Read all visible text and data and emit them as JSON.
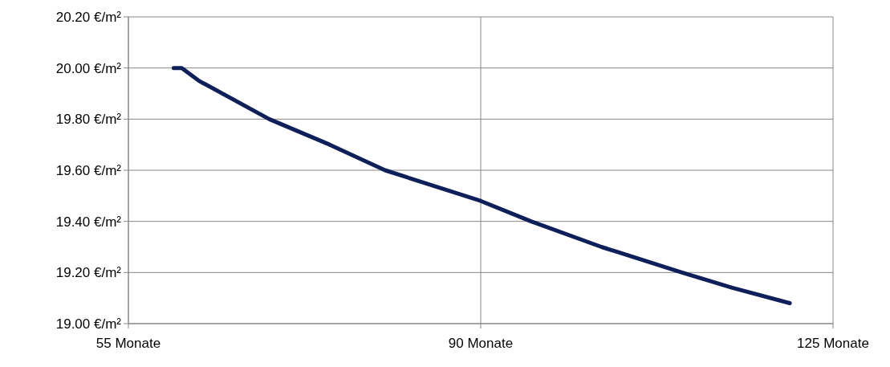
{
  "chart_data": {
    "type": "line",
    "x": [
      59.5,
      60.3,
      62,
      69,
      75,
      80.5,
      90,
      95,
      102,
      110,
      115,
      120.7
    ],
    "series": [
      {
        "color": "#0f1f5a",
        "values": [
          20.0,
          20.0,
          19.95,
          19.8,
          19.7,
          19.6,
          19.48,
          19.4,
          19.3,
          19.2,
          19.14,
          19.08
        ]
      }
    ],
    "xlim": [
      55,
      125
    ],
    "xticks": [
      {
        "value": 55,
        "label": "55 Monate"
      },
      {
        "value": 90,
        "label": "90 Monate"
      },
      {
        "value": 125,
        "label": "125 Monate"
      }
    ],
    "ylim": [
      19.0,
      20.2
    ],
    "yticks": [
      {
        "value": 19.0,
        "label": "19.00 €/m²"
      },
      {
        "value": 19.2,
        "label": "19.20 €/m²"
      },
      {
        "value": 19.4,
        "label": "19.40 €/m²"
      },
      {
        "value": 19.6,
        "label": "19.60 €/m²"
      },
      {
        "value": 19.8,
        "label": "19.80 €/m²"
      },
      {
        "value": 20.0,
        "label": "20.00 €/m²"
      },
      {
        "value": 20.2,
        "label": "20.20 €/m²"
      }
    ],
    "grid": true,
    "marker": "none",
    "line_style": "solid"
  }
}
